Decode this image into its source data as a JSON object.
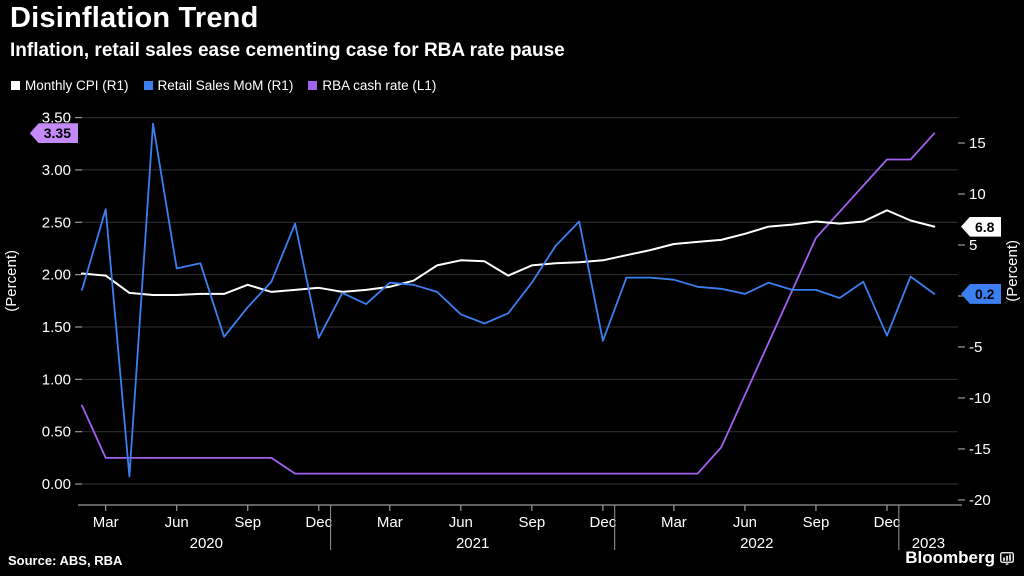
{
  "header": {
    "title": "Disinflation Trend",
    "subtitle": "Inflation, retail sales ease cementing case for RBA rate pause"
  },
  "legend": {
    "items": [
      {
        "id": "monthly-cpi",
        "label": "Monthly CPI (R1)",
        "color": "#ffffff"
      },
      {
        "id": "retail-sales",
        "label": "Retail Sales MoM (R1)",
        "color": "#3b7ff0"
      },
      {
        "id": "rba-cash-rate",
        "label": "RBA cash rate (L1)",
        "color": "#a061f0"
      }
    ]
  },
  "colors": {
    "background": "#000000",
    "text": "#ffffff",
    "grid": "#333333",
    "axis": "#999999"
  },
  "badges": [
    {
      "id": "rba-cash-rate-last",
      "text": "3.35",
      "axis": "left",
      "side": "left",
      "value": 3.35,
      "bg": "#c58af9",
      "fg": "#000000"
    },
    {
      "id": "monthly-cpi-last",
      "text": "6.8",
      "axis": "right",
      "side": "right",
      "value": 6.8,
      "bg": "#ffffff",
      "fg": "#000000"
    },
    {
      "id": "retail-sales-last",
      "text": "0.2",
      "axis": "right",
      "side": "right",
      "value": 0.2,
      "bg": "#3b7ff0",
      "fg": "#000000"
    }
  ],
  "footer": {
    "source": "Source: ABS, RBA",
    "brand": "Bloomberg"
  },
  "chart_data": {
    "type": "line",
    "title": "Disinflation Trend",
    "x_monthly": [
      "2020-02",
      "2020-03",
      "2020-04",
      "2020-05",
      "2020-06",
      "2020-07",
      "2020-08",
      "2020-09",
      "2020-10",
      "2020-11",
      "2020-12",
      "2021-01",
      "2021-02",
      "2021-03",
      "2021-04",
      "2021-05",
      "2021-06",
      "2021-07",
      "2021-08",
      "2021-09",
      "2021-10",
      "2021-11",
      "2021-12",
      "2022-01",
      "2022-02",
      "2022-03",
      "2022-04",
      "2022-05",
      "2022-06",
      "2022-07",
      "2022-08",
      "2022-09",
      "2022-10",
      "2022-11",
      "2022-12",
      "2023-01",
      "2023-02"
    ],
    "series": [
      {
        "id": "rba-cash-rate",
        "name": "RBA cash rate (L1)",
        "axis": "left",
        "color": "#a061f0",
        "values": [
          0.75,
          0.25,
          0.25,
          0.25,
          0.25,
          0.25,
          0.25,
          0.25,
          0.25,
          0.1,
          0.1,
          0.1,
          0.1,
          0.1,
          0.1,
          0.1,
          0.1,
          0.1,
          0.1,
          0.1,
          0.1,
          0.1,
          0.1,
          0.1,
          0.1,
          0.1,
          0.1,
          0.35,
          0.85,
          1.35,
          1.85,
          2.35,
          2.6,
          2.85,
          3.1,
          3.1,
          3.35
        ]
      },
      {
        "id": "monthly-cpi",
        "name": "Monthly CPI (R1)",
        "axis": "right",
        "color": "#ffffff",
        "values": [
          2.2,
          2.0,
          0.3,
          0.1,
          0.1,
          0.2,
          0.2,
          1.1,
          0.4,
          0.6,
          0.8,
          0.4,
          0.6,
          0.9,
          1.5,
          3.0,
          3.5,
          3.4,
          2.0,
          3.0,
          3.2,
          3.3,
          3.5,
          4.0,
          4.5,
          5.1,
          5.3,
          5.5,
          6.1,
          6.8,
          7.0,
          7.3,
          7.1,
          7.3,
          8.4,
          7.4,
          6.8
        ]
      },
      {
        "id": "retail-sales",
        "name": "Retail Sales MoM (R1)",
        "axis": "right",
        "color": "#3b7ff0",
        "values": [
          0.6,
          8.5,
          -17.7,
          16.9,
          2.7,
          3.2,
          -4.0,
          -1.1,
          1.4,
          7.1,
          -4.1,
          0.3,
          -0.8,
          1.3,
          1.1,
          0.4,
          -1.8,
          -2.7,
          -1.7,
          1.3,
          4.9,
          7.3,
          -4.4,
          1.8,
          1.8,
          1.6,
          0.9,
          0.7,
          0.2,
          1.3,
          0.6,
          0.6,
          -0.2,
          1.4,
          -3.9,
          1.9,
          0.2
        ]
      }
    ],
    "left_axis": {
      "label": "(Percent)",
      "min": -0.2,
      "max": 3.62,
      "ticks": [
        {
          "value": 3.5,
          "label": "3.50"
        },
        {
          "value": 3.0,
          "label": "3.00"
        },
        {
          "value": 2.5,
          "label": "2.50"
        },
        {
          "value": 2.0,
          "label": "2.00"
        },
        {
          "value": 1.5,
          "label": "1.50"
        },
        {
          "value": 1.0,
          "label": "1.00"
        },
        {
          "value": 0.5,
          "label": "0.50"
        },
        {
          "value": 0.0,
          "label": "0.00"
        }
      ]
    },
    "right_axis": {
      "label": "(Percent)",
      "min": -20.5,
      "max": 18.73,
      "ticks": [
        {
          "value": 15,
          "label": "15"
        },
        {
          "value": 10,
          "label": "10"
        },
        {
          "value": 5,
          "label": "5"
        },
        {
          "value": 0,
          "label": "0"
        },
        {
          "value": -5,
          "label": "-5"
        },
        {
          "value": -10,
          "label": "-10"
        },
        {
          "value": -15,
          "label": "-15"
        },
        {
          "value": -20,
          "label": "-20"
        }
      ]
    },
    "x_axis": {
      "month_ticks": [
        {
          "label": "Mar",
          "month": "2020-03"
        },
        {
          "label": "Jun",
          "month": "2020-06"
        },
        {
          "label": "Sep",
          "month": "2020-09"
        },
        {
          "label": "Dec",
          "month": "2020-12"
        },
        {
          "label": "Mar",
          "month": "2021-03"
        },
        {
          "label": "Jun",
          "month": "2021-06"
        },
        {
          "label": "Sep",
          "month": "2021-09"
        },
        {
          "label": "Dec",
          "month": "2021-12"
        },
        {
          "label": "Mar",
          "month": "2022-03"
        },
        {
          "label": "Jun",
          "month": "2022-06"
        },
        {
          "label": "Sep",
          "month": "2022-09"
        },
        {
          "label": "Dec",
          "month": "2022-12"
        }
      ],
      "years": [
        "2020",
        "2021",
        "2022",
        "2023"
      ],
      "year_starts": [
        "2021-01",
        "2022-01",
        "2023-01"
      ]
    },
    "grid": true,
    "legend_position": "top-left"
  }
}
